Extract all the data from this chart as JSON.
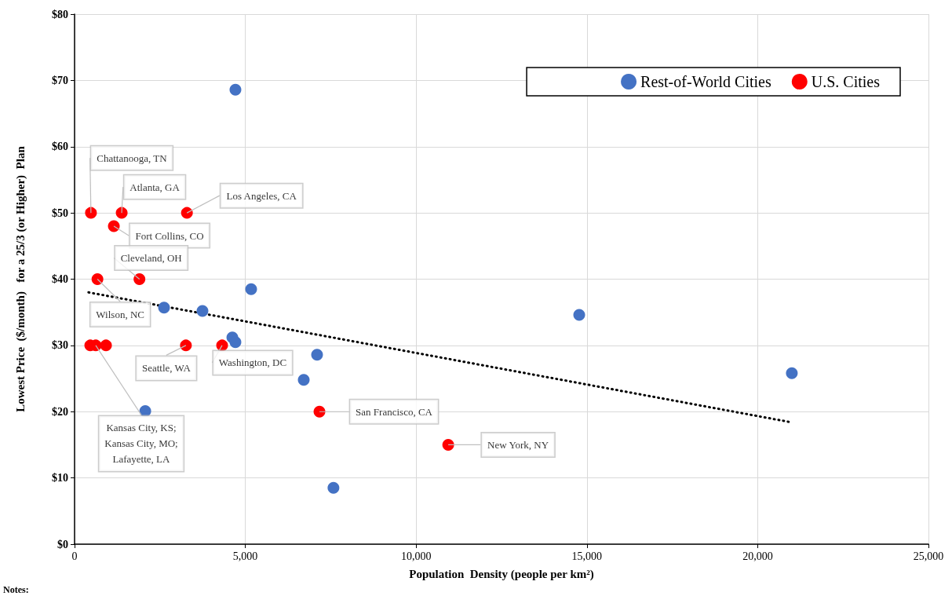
{
  "chart_data": {
    "type": "scatter",
    "xlabel": "Population  Density (people per km²)",
    "ylabel": "Lowest Price  ($/month)   for a 25/3 (or Higher)  Plan",
    "xlim": [
      0,
      25000
    ],
    "xticks": [
      0,
      {
        "value": 5000,
        "label": "5,000"
      },
      {
        "value": 10000,
        "label": "10,000"
      },
      {
        "value": 15000,
        "label": "15,000"
      },
      {
        "value": 20000,
        "label": "20,000"
      },
      {
        "value": 25000,
        "label": "25,000"
      }
    ],
    "ylim": [
      0,
      80
    ],
    "yticks": [
      {
        "value": 0,
        "label": "$0"
      },
      {
        "value": 10,
        "label": "$10"
      },
      {
        "value": 20,
        "label": "$20"
      },
      {
        "value": 30,
        "label": "$30"
      },
      {
        "value": 40,
        "label": "$40"
      },
      {
        "value": 50,
        "label": "$50"
      },
      {
        "value": 60,
        "label": "$60"
      },
      {
        "value": 70,
        "label": "$70"
      },
      {
        "value": 80,
        "label": "$80"
      }
    ],
    "grid": true,
    "legend": "top right",
    "marker": "circle",
    "series": [
      {
        "name": "Rest-of-World Cities",
        "color": "#4472c4",
        "x": [
          4710,
          2620,
          3745,
          5170,
          4620,
          4710,
          7100,
          6710,
          2070,
          7580,
          14775,
          21000
        ],
        "values": [
          68.6,
          35.7,
          35.2,
          38.5,
          31.2,
          30.5,
          28.6,
          24.8,
          20.1,
          8.5,
          34.6,
          25.8
        ]
      },
      {
        "name": "U.S. Cities",
        "color": "#ff0000",
        "x": [
          480,
          1380,
          3290,
          1150,
          1900,
          670,
          460,
          620,
          920,
          3260,
          4320,
          7170,
          10940
        ],
        "values": [
          50,
          50,
          50,
          48,
          40,
          40,
          30,
          30,
          30,
          30,
          30,
          20,
          15
        ]
      },
      {
        "type": "line",
        "color": "#000000",
        "line_style": "dotted",
        "marker": "none",
        "x": [
          410,
          20980
        ],
        "values": [
          38.0,
          18.4
        ]
      }
    ],
    "annotations": [
      {
        "text": "Chattanooga, TN",
        "x": 480,
        "y": 50
      },
      {
        "text": "Atlanta, GA",
        "x": 1380,
        "y": 50
      },
      {
        "text": "Los Angeles, CA",
        "x": 3290,
        "y": 50
      },
      {
        "text": "Fort Collins, CO",
        "x": 1150,
        "y": 48
      },
      {
        "text": "Cleveland, OH",
        "x": 1900,
        "y": 40
      },
      {
        "text": "Wilson, NC",
        "x": 670,
        "y": 40
      },
      {
        "text": "Kansas City, KS;\nKansas City, MO;\nLafayette, LA",
        "x": 620,
        "y": 30
      },
      {
        "text": "Seattle, WA",
        "x": 3260,
        "y": 30
      },
      {
        "text": "Washington, DC",
        "x": 4320,
        "y": 30
      },
      {
        "text": "San Francisco, CA",
        "x": 7170,
        "y": 20
      },
      {
        "text": "New York, NY",
        "x": 10940,
        "y": 15
      },
      "Notes:"
    ]
  }
}
